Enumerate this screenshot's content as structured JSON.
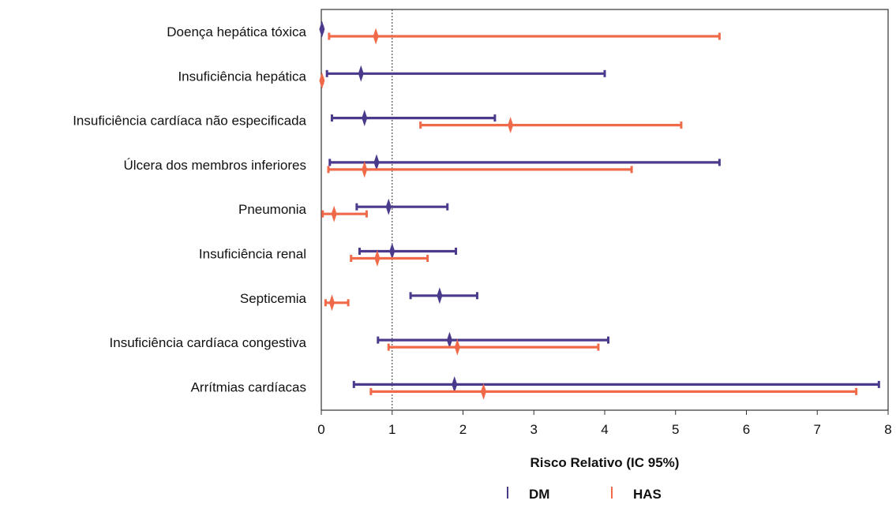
{
  "chart_data": {
    "type": "forest-plot",
    "xlabel": "Risco Relativo (IC 95%)",
    "xlim": [
      0,
      8
    ],
    "xticks": [
      0,
      1,
      2,
      3,
      4,
      5,
      6,
      7,
      8
    ],
    "reference_line": 1,
    "legend_position": "bottom-center",
    "categories": [
      "Doença hepática tóxica",
      "Insuficiência hepática",
      "Insuficiência cardíaca não especificada",
      "Úlcera dos membros inferiores",
      "Pneumonia",
      "Insuficiência renal",
      "Septicemia",
      "Insuficiência cardíaca congestiva",
      "Arrítmias cardíacas"
    ],
    "series": [
      {
        "name": "DM",
        "color": "#4b3a8c",
        "points": [
          {
            "rr": 0.01,
            "lower": 0.0,
            "upper": 0.02
          },
          {
            "rr": 0.56,
            "lower": 0.08,
            "upper": 4.0
          },
          {
            "rr": 0.61,
            "lower": 0.15,
            "upper": 2.45
          },
          {
            "rr": 0.78,
            "lower": 0.12,
            "upper": 5.62
          },
          {
            "rr": 0.95,
            "lower": 0.5,
            "upper": 1.78
          },
          {
            "rr": 1.0,
            "lower": 0.54,
            "upper": 1.9
          },
          {
            "rr": 1.67,
            "lower": 1.26,
            "upper": 2.2
          },
          {
            "rr": 1.81,
            "lower": 0.8,
            "upper": 4.05
          },
          {
            "rr": 1.88,
            "lower": 0.46,
            "upper": 7.87
          }
        ]
      },
      {
        "name": "HAS",
        "color": "#f06a4a",
        "points": [
          {
            "rr": 0.77,
            "lower": 0.11,
            "upper": 5.62
          },
          {
            "rr": 0.01,
            "lower": 0.0,
            "upper": 0.02
          },
          {
            "rr": 2.67,
            "lower": 1.4,
            "upper": 5.08
          },
          {
            "rr": 0.61,
            "lower": 0.1,
            "upper": 4.38
          },
          {
            "rr": 0.18,
            "lower": 0.02,
            "upper": 0.64
          },
          {
            "rr": 0.79,
            "lower": 0.42,
            "upper": 1.5
          },
          {
            "rr": 0.15,
            "lower": 0.06,
            "upper": 0.38
          },
          {
            "rr": 1.92,
            "lower": 0.95,
            "upper": 3.91
          },
          {
            "rr": 2.29,
            "lower": 0.7,
            "upper": 7.55
          }
        ]
      }
    ]
  }
}
